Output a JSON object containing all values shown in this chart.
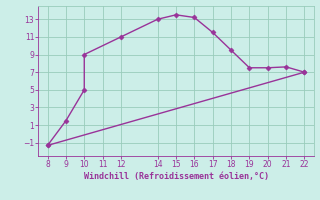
{
  "line1_x": [
    8,
    9,
    10,
    10,
    12,
    14,
    15,
    16,
    17,
    18,
    19,
    20,
    21,
    22
  ],
  "line1_y": [
    -1.3,
    1.5,
    5,
    9,
    11,
    13,
    13.5,
    13.2,
    11.5,
    9.5,
    7.5,
    7.5,
    7.6,
    7.0
  ],
  "line2_x": [
    8,
    22
  ],
  "line2_y": [
    -1.3,
    7.0
  ],
  "color": "#993399",
  "bg_color": "#cceee8",
  "grid_color": "#99ccbb",
  "xlabel": "Windchill (Refroidissement éolien,°C)",
  "xlim": [
    7.5,
    22.5
  ],
  "ylim": [
    -2.5,
    14.5
  ],
  "xticks": [
    8,
    9,
    10,
    11,
    12,
    14,
    15,
    16,
    17,
    18,
    19,
    20,
    21,
    22
  ],
  "yticks": [
    -1,
    1,
    3,
    5,
    7,
    9,
    11,
    13
  ],
  "xlabel_color": "#993399",
  "tick_color": "#993399",
  "marker": "D",
  "markersize": 2.5,
  "linewidth": 1.0
}
